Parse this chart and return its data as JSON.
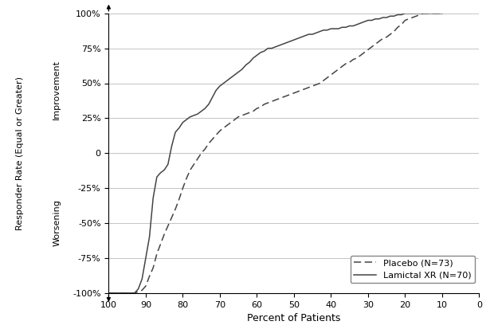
{
  "title": "",
  "xlabel": "Percent of Patients",
  "xlim": [
    100,
    0
  ],
  "ylim": [
    -100,
    100
  ],
  "yticks": [
    -100,
    -75,
    -50,
    -25,
    0,
    25,
    50,
    75,
    100
  ],
  "ytick_labels": [
    "-100%",
    "-75%",
    "-50%",
    "-25%",
    "0",
    "25%",
    "50%",
    "75%",
    "100%"
  ],
  "xticks": [
    100,
    90,
    80,
    70,
    60,
    50,
    40,
    30,
    20,
    10,
    0
  ],
  "background_color": "#ffffff",
  "grid_color": "#bbbbbb",
  "line_color": "#444444",
  "legend_labels": [
    "Placebo (N=73)",
    "Lamictal XR (N=70)"
  ],
  "placebo_x": [
    100,
    97,
    95,
    93,
    91,
    90,
    89,
    88,
    87,
    86,
    85,
    84,
    83,
    82,
    81,
    80,
    79,
    78,
    77,
    76,
    75,
    74,
    73,
    72,
    71,
    70,
    69,
    68,
    67,
    66,
    65,
    64,
    63,
    62,
    61,
    60,
    59,
    58,
    57,
    56,
    55,
    54,
    53,
    52,
    51,
    50,
    49,
    48,
    47,
    46,
    45,
    44,
    43,
    42,
    41,
    40,
    39,
    38,
    37,
    36,
    35,
    34,
    33,
    32,
    31,
    30,
    29,
    28,
    27,
    26,
    25,
    24,
    23,
    22,
    21,
    20,
    19,
    18,
    17,
    16,
    15,
    14,
    13,
    12,
    11,
    10
  ],
  "placebo_y": [
    -100,
    -100,
    -100,
    -100,
    -98,
    -95,
    -88,
    -82,
    -72,
    -65,
    -58,
    -52,
    -46,
    -40,
    -33,
    -25,
    -18,
    -12,
    -8,
    -4,
    0,
    3,
    7,
    10,
    13,
    16,
    18,
    20,
    22,
    24,
    26,
    27,
    28,
    29,
    30,
    32,
    33,
    35,
    36,
    37,
    38,
    39,
    40,
    41,
    42,
    43,
    44,
    45,
    46,
    47,
    48,
    49,
    50,
    52,
    54,
    56,
    58,
    60,
    62,
    64,
    65,
    67,
    68,
    70,
    72,
    74,
    76,
    78,
    80,
    82,
    83,
    85,
    87,
    90,
    92,
    95,
    96,
    97,
    98,
    99,
    100,
    100,
    100,
    100,
    100,
    100
  ],
  "lamictal_x": [
    100,
    98,
    96,
    95,
    94,
    93,
    92,
    91,
    90,
    89,
    88,
    87,
    86,
    85,
    84,
    83,
    82,
    81,
    80,
    79,
    78,
    77,
    76,
    75,
    74,
    73,
    72,
    71,
    70,
    69,
    68,
    67,
    66,
    65,
    64,
    63,
    62,
    61,
    60,
    59,
    58,
    57,
    56,
    55,
    54,
    53,
    52,
    51,
    50,
    49,
    48,
    47,
    46,
    45,
    44,
    43,
    42,
    41,
    40,
    39,
    38,
    37,
    36,
    35,
    34,
    33,
    32,
    31,
    30,
    29,
    28,
    27,
    26,
    25,
    24,
    23,
    22,
    21,
    20,
    19,
    18,
    17,
    16,
    15,
    14,
    13,
    12,
    11,
    10
  ],
  "lamictal_y": [
    -100,
    -100,
    -100,
    -100,
    -100,
    -100,
    -97,
    -90,
    -75,
    -60,
    -32,
    -17,
    -14,
    -12,
    -8,
    5,
    15,
    18,
    22,
    24,
    26,
    27,
    28,
    30,
    32,
    35,
    40,
    45,
    48,
    50,
    52,
    54,
    56,
    58,
    60,
    63,
    65,
    68,
    70,
    72,
    73,
    75,
    75,
    76,
    77,
    78,
    79,
    80,
    81,
    82,
    83,
    84,
    85,
    85,
    86,
    87,
    88,
    88,
    89,
    89,
    89,
    90,
    90,
    91,
    91,
    92,
    93,
    94,
    95,
    95,
    96,
    96,
    97,
    97,
    98,
    98,
    99,
    99,
    100,
    100,
    100,
    100,
    100,
    100,
    100,
    100,
    100,
    100,
    100
  ]
}
